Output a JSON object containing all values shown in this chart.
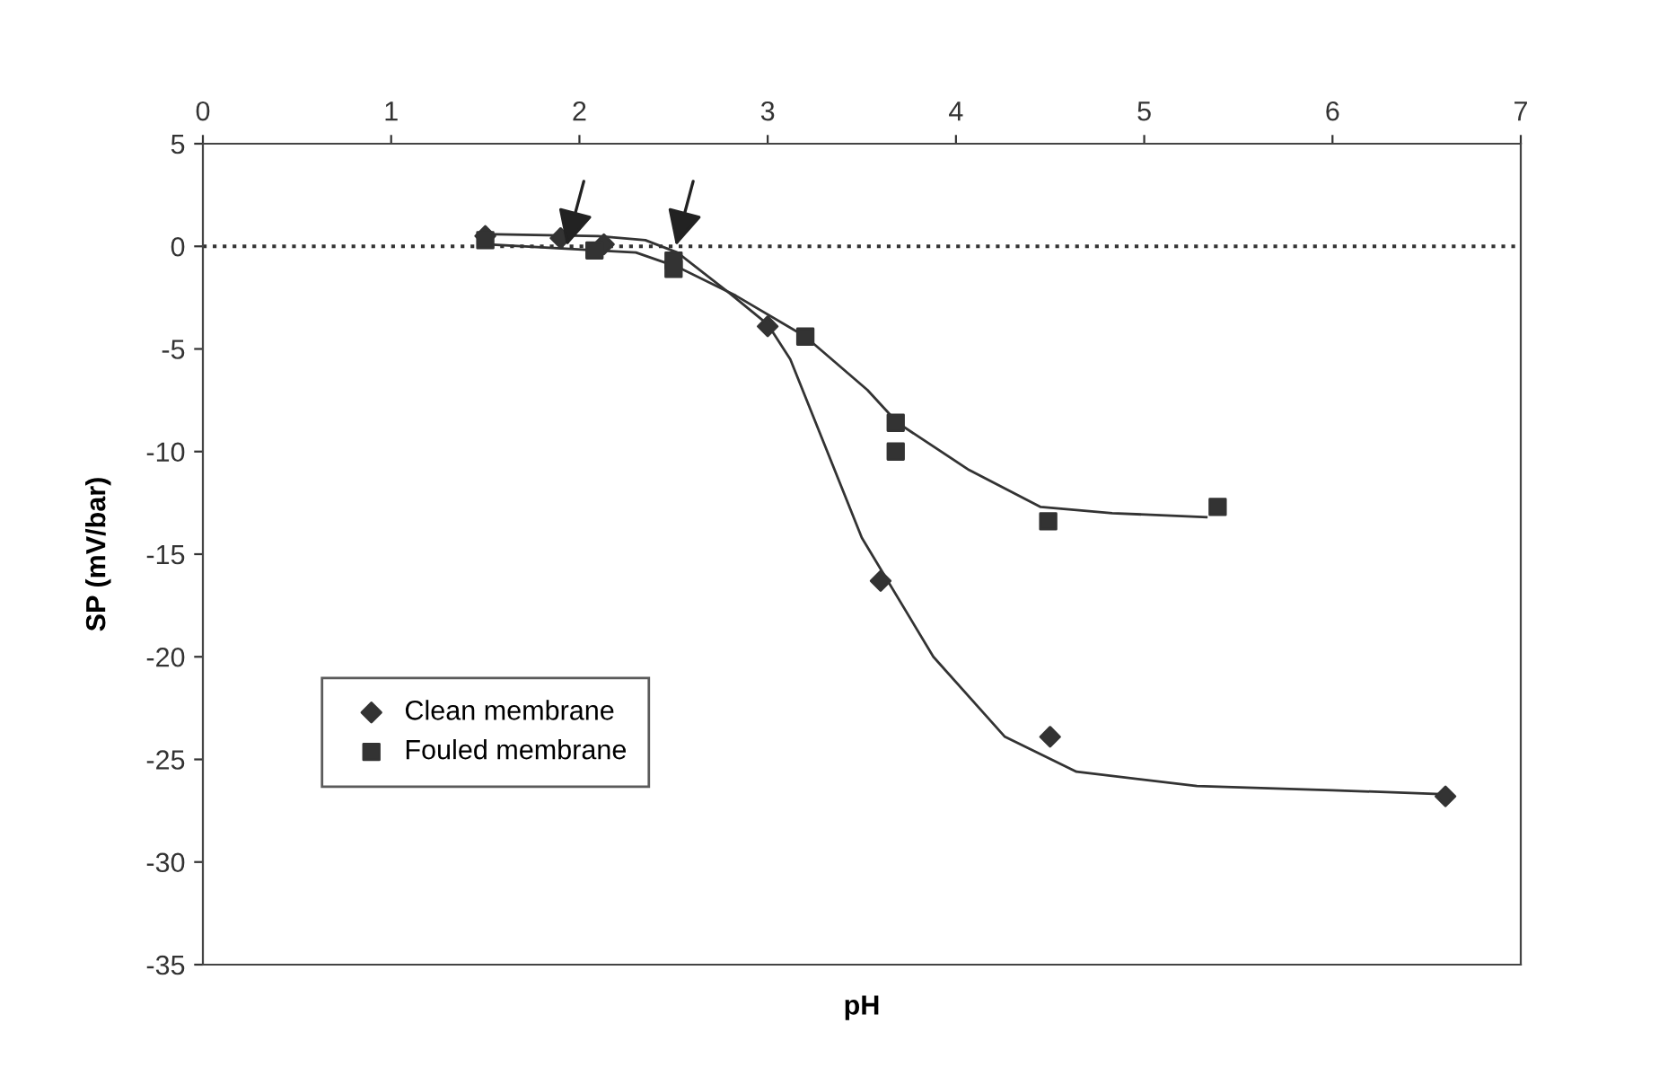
{
  "chart_data": {
    "type": "scatter",
    "xlabel": "pH",
    "ylabel": "SP (mV/bar)",
    "xlim": [
      0,
      7
    ],
    "xticks": [
      0,
      1,
      2,
      3,
      4,
      5,
      6,
      7
    ],
    "ylim": [
      -35,
      5
    ],
    "yticks": [
      -35,
      -30,
      -25,
      -20,
      -15,
      -10,
      -5,
      0,
      5
    ],
    "grid": false,
    "legend": "bottom left",
    "series": [
      {
        "name": "Clean membrane",
        "marker": "diamond",
        "color": "#333333",
        "x": [
          1.5,
          1.9,
          2.13,
          3.0,
          3.6,
          4.5,
          6.6
        ],
        "values": [
          0.5,
          0.4,
          0.1,
          -3.9,
          -16.3,
          -23.9,
          -26.8
        ]
      },
      {
        "name": "Fouled membrane",
        "marker": "square",
        "color": "#333333",
        "x": [
          1.5,
          2.08,
          2.5,
          2.5,
          3.2,
          3.68,
          3.68,
          4.49,
          5.39
        ],
        "values": [
          0.3,
          -0.2,
          -0.7,
          -1.1,
          -4.4,
          -8.6,
          -10.0,
          -13.4,
          -12.7
        ]
      },
      {
        "type": "line",
        "marker": "none",
        "line_style": "solid",
        "color": "#333333",
        "x": [
          1.5,
          2.1,
          2.35,
          2.52,
          2.8,
          3.0,
          3.12,
          3.5,
          3.88,
          4.26,
          4.64,
          5.28,
          6.0,
          6.6
        ],
        "values": [
          0.6,
          0.5,
          0.3,
          -0.3,
          -2.3,
          -3.8,
          -5.5,
          -14.2,
          -20.0,
          -23.9,
          -25.6,
          -26.3,
          -26.5,
          -26.7
        ]
      },
      {
        "type": "line",
        "marker": "none",
        "line_style": "solid",
        "color": "#333333",
        "x": [
          1.5,
          2.1,
          2.3,
          2.52,
          2.83,
          3.2,
          3.53,
          3.69,
          4.07,
          4.45,
          4.83,
          5.33
        ],
        "values": [
          0.1,
          -0.2,
          -0.3,
          -1.0,
          -2.4,
          -4.4,
          -7.0,
          -8.6,
          -10.9,
          -12.7,
          -13.0,
          -13.2
        ]
      }
    ],
    "ref_lines": [
      {
        "axis": "y",
        "value": 0,
        "label": null,
        "color": "#333333",
        "line_style": "dotted"
      }
    ]
  }
}
